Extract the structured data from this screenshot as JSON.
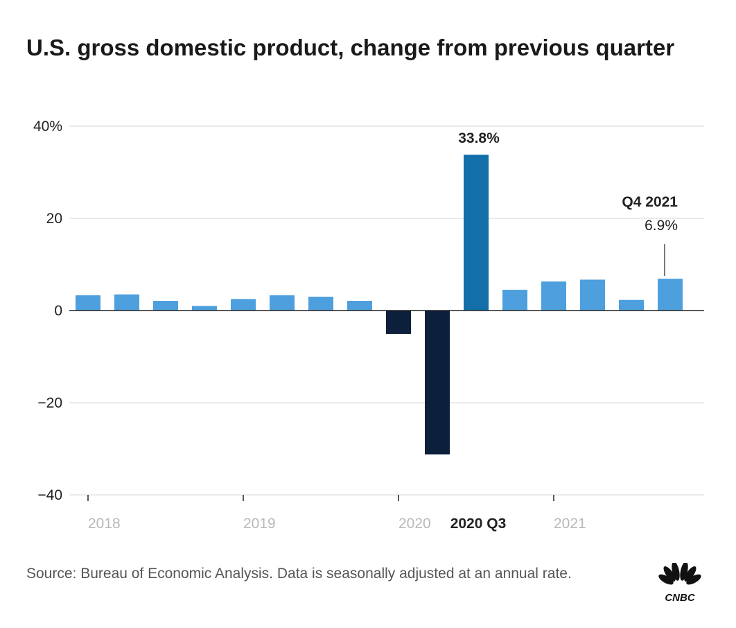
{
  "title": "U.S. gross domestic product, change from previous quarter",
  "source": "Source: Bureau of Economic Analysis. Data is seasonally adjusted at an annual rate.",
  "logo_text": "CNBC",
  "colors": {
    "bar": "#4d9fdd",
    "highlight_positive": "#126fa9",
    "highlight_negative": "#0c1f3b",
    "grid": "#d4d4d4",
    "axis": "#222222",
    "tick_label_year": "#b8b8b8",
    "text": "#222222"
  },
  "chart_data": {
    "type": "bar",
    "title": "U.S. gross domestic product, change from previous quarter",
    "xlabel": "",
    "ylabel": "",
    "ylim": [
      -40,
      40
    ],
    "y_ticks": [
      {
        "value": 40,
        "label": "40%"
      },
      {
        "value": 20,
        "label": "20"
      },
      {
        "value": 0,
        "label": "0"
      },
      {
        "value": -20,
        "label": "−20"
      },
      {
        "value": -40,
        "label": "−40"
      }
    ],
    "grid": true,
    "categories": [
      "Q1 2018",
      "Q2 2018",
      "Q3 2018",
      "Q4 2018",
      "Q1 2019",
      "Q2 2019",
      "Q3 2019",
      "Q4 2019",
      "Q1 2020",
      "Q2 2020",
      "Q3 2020",
      "Q4 2020",
      "Q1 2021",
      "Q2 2021",
      "Q3 2021",
      "Q4 2021"
    ],
    "values": [
      3.3,
      3.5,
      2.1,
      1.0,
      2.5,
      3.3,
      3.0,
      2.1,
      -5.1,
      -31.2,
      33.8,
      4.5,
      6.3,
      6.7,
      2.3,
      6.9
    ],
    "highlight": [
      false,
      false,
      false,
      false,
      false,
      false,
      false,
      false,
      true,
      true,
      true,
      false,
      false,
      false,
      false,
      false
    ],
    "x_tick_labels": [
      {
        "at": 0,
        "label": "2018",
        "tick": true,
        "bold": false
      },
      {
        "at": 4,
        "label": "2019",
        "tick": true,
        "bold": false
      },
      {
        "at": 8,
        "label": "2020",
        "tick": true,
        "bold": false
      },
      {
        "at": 10,
        "label": "2020 Q3",
        "tick": false,
        "bold": true
      },
      {
        "at": 12,
        "label": "2021",
        "tick": true,
        "bold": false
      }
    ],
    "annotations": [
      {
        "index": 10,
        "lines": [
          "33.8%"
        ],
        "bold": [
          true
        ],
        "leader": false
      },
      {
        "index": 15,
        "lines": [
          "Q4 2021",
          "6.9%"
        ],
        "bold": [
          true,
          false
        ],
        "leader": true
      }
    ]
  }
}
